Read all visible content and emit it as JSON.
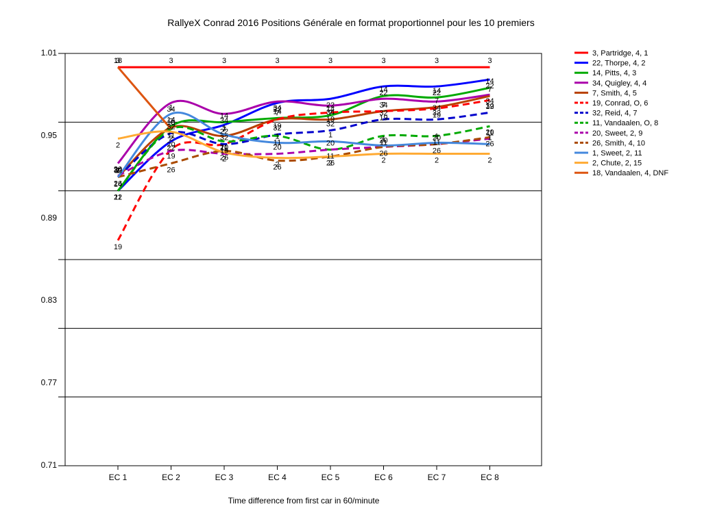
{
  "chart_data": {
    "type": "line",
    "title": "RallyeX Conrad 2016  Positions Générale en format proportionnel pour les 10 premiers",
    "xlabel": "Time difference from first car in 60/minute",
    "ylabel": "",
    "categories": [
      "EC 1",
      "EC 2",
      "EC 3",
      "EC 4",
      "EC 5",
      "EC 6",
      "EC 7",
      "EC 8"
    ],
    "ylim": [
      0.71,
      1.01
    ],
    "yticks": [
      "1.01",
      "0.95",
      "0.89",
      "0.83",
      "0.77",
      "0.71"
    ],
    "grid": true,
    "legend_position": "right",
    "series": [
      {
        "name": "3, Partridge, 4, 1",
        "label": "3",
        "color": "#ff0000",
        "dash": false,
        "values": [
          1.0,
          1.0,
          1.0,
          1.0,
          1.0,
          1.0,
          1.0,
          1.0
        ]
      },
      {
        "name": "22, Thorpe, 4, 2",
        "label": "22",
        "color": "#0000ff",
        "dash": false,
        "values": [
          0.91,
          0.946,
          0.958,
          0.974,
          0.977,
          0.986,
          0.986,
          0.991
        ]
      },
      {
        "name": "14, Pitts, 4, 3",
        "label": "14",
        "color": "#00aa00",
        "dash": false,
        "values": [
          0.91,
          0.957,
          0.96,
          0.963,
          0.965,
          0.979,
          0.978,
          0.985
        ]
      },
      {
        "name": "34, Quigley, 4, 4",
        "label": "34",
        "color": "#aa00aa",
        "dash": false,
        "values": [
          0.93,
          0.974,
          0.966,
          0.975,
          0.972,
          0.977,
          0.975,
          0.98
        ]
      },
      {
        "name": "7, Smith, 4, 5",
        "label": "7",
        "color": "#b84000",
        "dash": false,
        "values": [
          0.92,
          0.956,
          0.95,
          0.962,
          0.962,
          0.968,
          0.971,
          0.979
        ]
      },
      {
        "name": "19, Conrad, O, 6",
        "label": "19",
        "color": "#ff0000",
        "dash": true,
        "values": [
          0.874,
          0.94,
          0.944,
          0.962,
          0.967,
          0.968,
          0.97,
          0.976
        ]
      },
      {
        "name": "32, Reid, 4, 7",
        "label": "32",
        "color": "#0000cc",
        "dash": true,
        "values": [
          0.92,
          0.952,
          0.944,
          0.951,
          0.954,
          0.962,
          0.962,
          0.967
        ]
      },
      {
        "name": "11, Vandaalen, O, 8",
        "label": "11",
        "color": "#00aa00",
        "dash": true,
        "values": [
          0.91,
          0.955,
          0.946,
          0.95,
          0.94,
          0.95,
          0.95,
          0.957
        ]
      },
      {
        "name": "20, Sweet, 2, 9",
        "label": "20",
        "color": "#aa00aa",
        "dash": true,
        "values": [
          0.921,
          0.939,
          0.937,
          0.937,
          0.94,
          0.942,
          0.944,
          0.948
        ]
      },
      {
        "name": "26, Smith, 4, 10",
        "label": "26",
        "color": "#aa4a00",
        "dash": true,
        "values": [
          0.92,
          0.93,
          0.939,
          0.932,
          0.935,
          0.942,
          0.944,
          0.949
        ]
      },
      {
        "name": "1, Sweet, 2, 11",
        "label": "1",
        "color": "#4488dd",
        "dash": false,
        "values": [
          0.92,
          0.966,
          0.951,
          0.945,
          0.946,
          0.943,
          0.945,
          0.944
        ]
      },
      {
        "name": "2, Chute, 2, 15",
        "label": "2",
        "color": "#ffaa33",
        "dash": false,
        "values": [
          0.948,
          0.953,
          0.938,
          0.934,
          0.935,
          0.937,
          0.937,
          0.937
        ]
      },
      {
        "name": "18, Vandaalen, 4, DNF",
        "label": "18",
        "color": "#dd5511",
        "dash": false,
        "values": [
          1.0,
          0.955,
          null,
          null,
          null,
          null,
          null,
          null
        ]
      }
    ]
  }
}
